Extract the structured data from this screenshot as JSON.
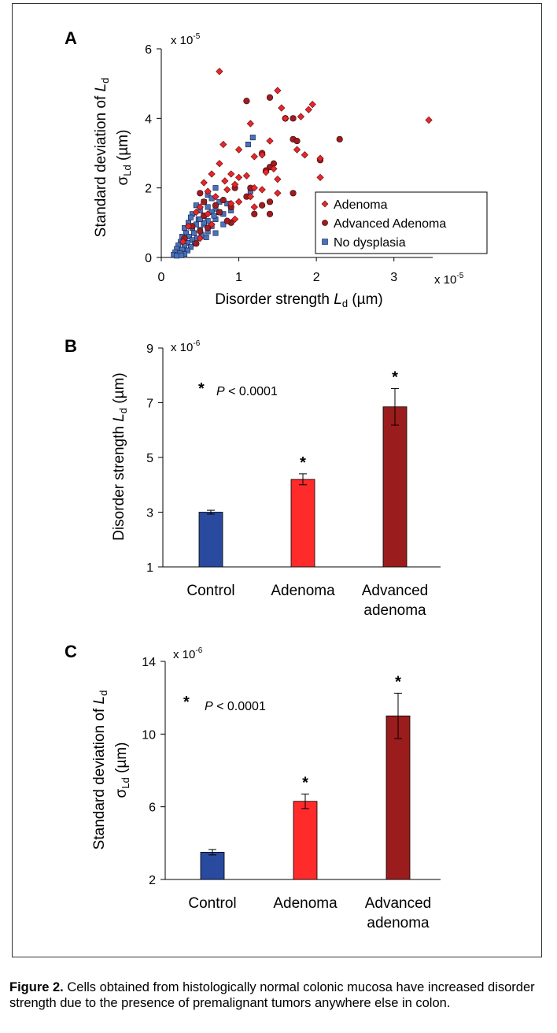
{
  "chart_data": [
    {
      "panel": "A",
      "type": "scatter",
      "xlabel_prefix": "Disorder strength ",
      "xlabel_var": "L",
      "xlabel_sub": "d",
      "xlabel_unit": " (µm)",
      "ylabel_line1_prefix": "Standard deviation of ",
      "ylabel_line1_var": "L",
      "ylabel_line1_sub": "d",
      "ylabel_line2_sym": "σ",
      "ylabel_line2_sub": "Ld",
      "ylabel_line2_unit": " (µm)",
      "x_multiplier": "x 10",
      "x_multiplier_exp": "-5",
      "y_multiplier": "x 10",
      "y_multiplier_exp": "-5",
      "xlim": [
        0,
        3.5
      ],
      "ylim": [
        0,
        6
      ],
      "xticks": [
        "0",
        "1",
        "2",
        "3"
      ],
      "yticks": [
        "0",
        "2",
        "4",
        "6"
      ],
      "legend": [
        "Adenoma",
        "Advanced Adenoma",
        "No dysplasia"
      ],
      "series": [
        {
          "name": "Adenoma",
          "marker": "diamond",
          "color": "#e8262a",
          "points": [
            [
              0.75,
              5.35
            ],
            [
              1.5,
              4.8
            ],
            [
              1.55,
              4.3
            ],
            [
              1.9,
              4.25
            ],
            [
              1.95,
              4.4
            ],
            [
              1.6,
              4.0
            ],
            [
              1.8,
              4.05
            ],
            [
              3.45,
              3.95
            ],
            [
              1.15,
              3.85
            ],
            [
              1.4,
              3.35
            ],
            [
              1.75,
              3.1
            ],
            [
              1.85,
              2.95
            ],
            [
              0.8,
              3.25
            ],
            [
              1.0,
              3.1
            ],
            [
              1.2,
              2.9
            ],
            [
              1.3,
              2.95
            ],
            [
              2.05,
              2.85
            ],
            [
              1.45,
              2.55
            ],
            [
              1.35,
              2.45
            ],
            [
              1.1,
              2.35
            ],
            [
              0.65,
              2.4
            ],
            [
              0.75,
              2.7
            ],
            [
              0.9,
              2.4
            ],
            [
              1.0,
              2.3
            ],
            [
              2.05,
              2.3
            ],
            [
              1.5,
              2.25
            ],
            [
              0.55,
              2.15
            ],
            [
              0.82,
              2.2
            ],
            [
              0.95,
              2.1
            ],
            [
              1.2,
              2.0
            ],
            [
              1.3,
              1.95
            ],
            [
              1.5,
              1.85
            ],
            [
              0.6,
              1.9
            ],
            [
              0.85,
              1.95
            ],
            [
              0.7,
              1.75
            ],
            [
              1.15,
              1.75
            ],
            [
              0.9,
              1.55
            ],
            [
              1.0,
              1.6
            ],
            [
              0.5,
              1.45
            ],
            [
              1.2,
              1.45
            ],
            [
              0.45,
              1.3
            ],
            [
              0.6,
              1.25
            ],
            [
              0.95,
              1.1
            ],
            [
              0.35,
              0.9
            ],
            [
              0.65,
              0.95
            ],
            [
              0.5,
              0.55
            ],
            [
              0.28,
              0.45
            ]
          ]
        },
        {
          "name": "Advanced Adenoma",
          "marker": "circle",
          "color": "#9b1d22",
          "points": [
            [
              1.1,
              4.5
            ],
            [
              1.4,
              4.6
            ],
            [
              1.6,
              4.0
            ],
            [
              1.7,
              4.0
            ],
            [
              2.3,
              3.4
            ],
            [
              1.7,
              3.4
            ],
            [
              1.75,
              3.35
            ],
            [
              1.3,
              3.0
            ],
            [
              1.4,
              2.6
            ],
            [
              2.05,
              2.8
            ],
            [
              1.45,
              2.7
            ],
            [
              1.35,
              2.5
            ],
            [
              1.15,
              2.0
            ],
            [
              1.7,
              1.85
            ],
            [
              0.95,
              2.0
            ],
            [
              1.1,
              1.75
            ],
            [
              1.3,
              1.5
            ],
            [
              1.4,
              1.6
            ],
            [
              1.4,
              1.25
            ],
            [
              0.5,
              1.85
            ],
            [
              0.55,
              1.6
            ],
            [
              0.7,
              1.5
            ],
            [
              0.8,
              1.65
            ],
            [
              0.9,
              1.45
            ],
            [
              1.2,
              1.25
            ],
            [
              0.75,
              1.3
            ],
            [
              0.55,
              1.2
            ],
            [
              0.9,
              1.0
            ],
            [
              0.4,
              0.9
            ],
            [
              0.6,
              0.85
            ],
            [
              0.85,
              1.05
            ],
            [
              0.5,
              0.75
            ],
            [
              0.3,
              0.55
            ],
            [
              0.45,
              0.4
            ]
          ]
        },
        {
          "name": "No dysplasia",
          "marker": "square",
          "color": "#4a72b8",
          "points": [
            [
              1.18,
              3.45
            ],
            [
              1.12,
              3.25
            ],
            [
              1.15,
              1.9
            ],
            [
              0.7,
              2.0
            ],
            [
              0.6,
              1.8
            ],
            [
              0.65,
              1.7
            ],
            [
              0.55,
              1.6
            ],
            [
              0.75,
              1.6
            ],
            [
              0.85,
              1.55
            ],
            [
              0.45,
              1.5
            ],
            [
              0.6,
              1.45
            ],
            [
              0.7,
              1.4
            ],
            [
              0.5,
              1.35
            ],
            [
              0.65,
              1.3
            ],
            [
              0.4,
              1.25
            ],
            [
              0.55,
              1.2
            ],
            [
              0.8,
              1.25
            ],
            [
              0.38,
              1.15
            ],
            [
              0.48,
              1.1
            ],
            [
              0.6,
              1.05
            ],
            [
              0.7,
              1.1
            ],
            [
              0.35,
              1.0
            ],
            [
              0.45,
              0.95
            ],
            [
              0.55,
              0.95
            ],
            [
              0.65,
              0.9
            ],
            [
              0.3,
              0.85
            ],
            [
              0.4,
              0.85
            ],
            [
              0.5,
              0.8
            ],
            [
              0.6,
              0.75
            ],
            [
              0.32,
              0.7
            ],
            [
              0.42,
              0.7
            ],
            [
              0.52,
              0.65
            ],
            [
              0.27,
              0.6
            ],
            [
              0.36,
              0.6
            ],
            [
              0.46,
              0.55
            ],
            [
              0.3,
              0.5
            ],
            [
              0.4,
              0.5
            ],
            [
              0.25,
              0.45
            ],
            [
              0.34,
              0.42
            ],
            [
              0.43,
              0.4
            ],
            [
              0.22,
              0.35
            ],
            [
              0.3,
              0.33
            ],
            [
              0.38,
              0.3
            ],
            [
              0.2,
              0.25
            ],
            [
              0.27,
              0.22
            ],
            [
              0.34,
              0.2
            ],
            [
              0.18,
              0.15
            ],
            [
              0.24,
              0.12
            ],
            [
              0.3,
              0.1
            ],
            [
              0.16,
              0.08
            ],
            [
              0.2,
              0.05
            ],
            [
              0.26,
              0.06
            ],
            [
              0.55,
              1.0
            ],
            [
              0.75,
              1.3
            ],
            [
              0.9,
              1.35
            ],
            [
              0.8,
              0.95
            ],
            [
              0.7,
              0.7
            ],
            [
              0.58,
              0.58
            ],
            [
              0.5,
              1.1
            ],
            [
              0.68,
              1.2
            ]
          ]
        }
      ]
    },
    {
      "panel": "B",
      "type": "bar",
      "categories": [
        "Control",
        "Adenoma",
        "Advanced|adenoma"
      ],
      "values": [
        3.0,
        4.2,
        6.85
      ],
      "errors": [
        0.07,
        0.2,
        0.67
      ],
      "colors": [
        "#2a4aa0",
        "#ff2a2a",
        "#9b1c1c"
      ],
      "significant": [
        "",
        "*",
        "*"
      ],
      "ylim": [
        1,
        9
      ],
      "yticks": [
        "1",
        "3",
        "5",
        "7",
        "9"
      ],
      "y_multiplier": "x 10",
      "y_multiplier_exp": "-6",
      "ylabel_prefix": "Disorder strength ",
      "ylabel_var": "L",
      "ylabel_sub": "d",
      "ylabel_unit": " (µm)",
      "annotation_star": "*",
      "annotation_p": "P",
      "annotation_rest": " < 0.0001"
    },
    {
      "panel": "C",
      "type": "bar",
      "categories": [
        "Control",
        "Adenoma",
        "Advanced|adenoma"
      ],
      "values": [
        3.5,
        6.3,
        11.0
      ],
      "errors": [
        0.15,
        0.4,
        1.25
      ],
      "colors": [
        "#2a4aa0",
        "#ff2a2a",
        "#9b1c1c"
      ],
      "significant": [
        "",
        "*",
        "*"
      ],
      "ylim": [
        2,
        14
      ],
      "yticks": [
        "2",
        "6",
        "10",
        "14"
      ],
      "y_multiplier": "x 10",
      "y_multiplier_exp": "-6",
      "ylabel_line1_prefix": "Standard deviation of ",
      "ylabel_line1_var": "L",
      "ylabel_line1_sub": "d",
      "ylabel_line2_sym": "σ",
      "ylabel_line2_sub": "Ld",
      "ylabel_line2_unit": " (µm)",
      "annotation_star": "*",
      "annotation_p": "P",
      "annotation_rest": " < 0.0001"
    }
  ],
  "caption": {
    "label": "Figure 2.",
    "text": " Cells obtained from histologically normal colonic mucosa have increased disorder strength due to the presence of premalignant tumors anywhere else in colon."
  }
}
